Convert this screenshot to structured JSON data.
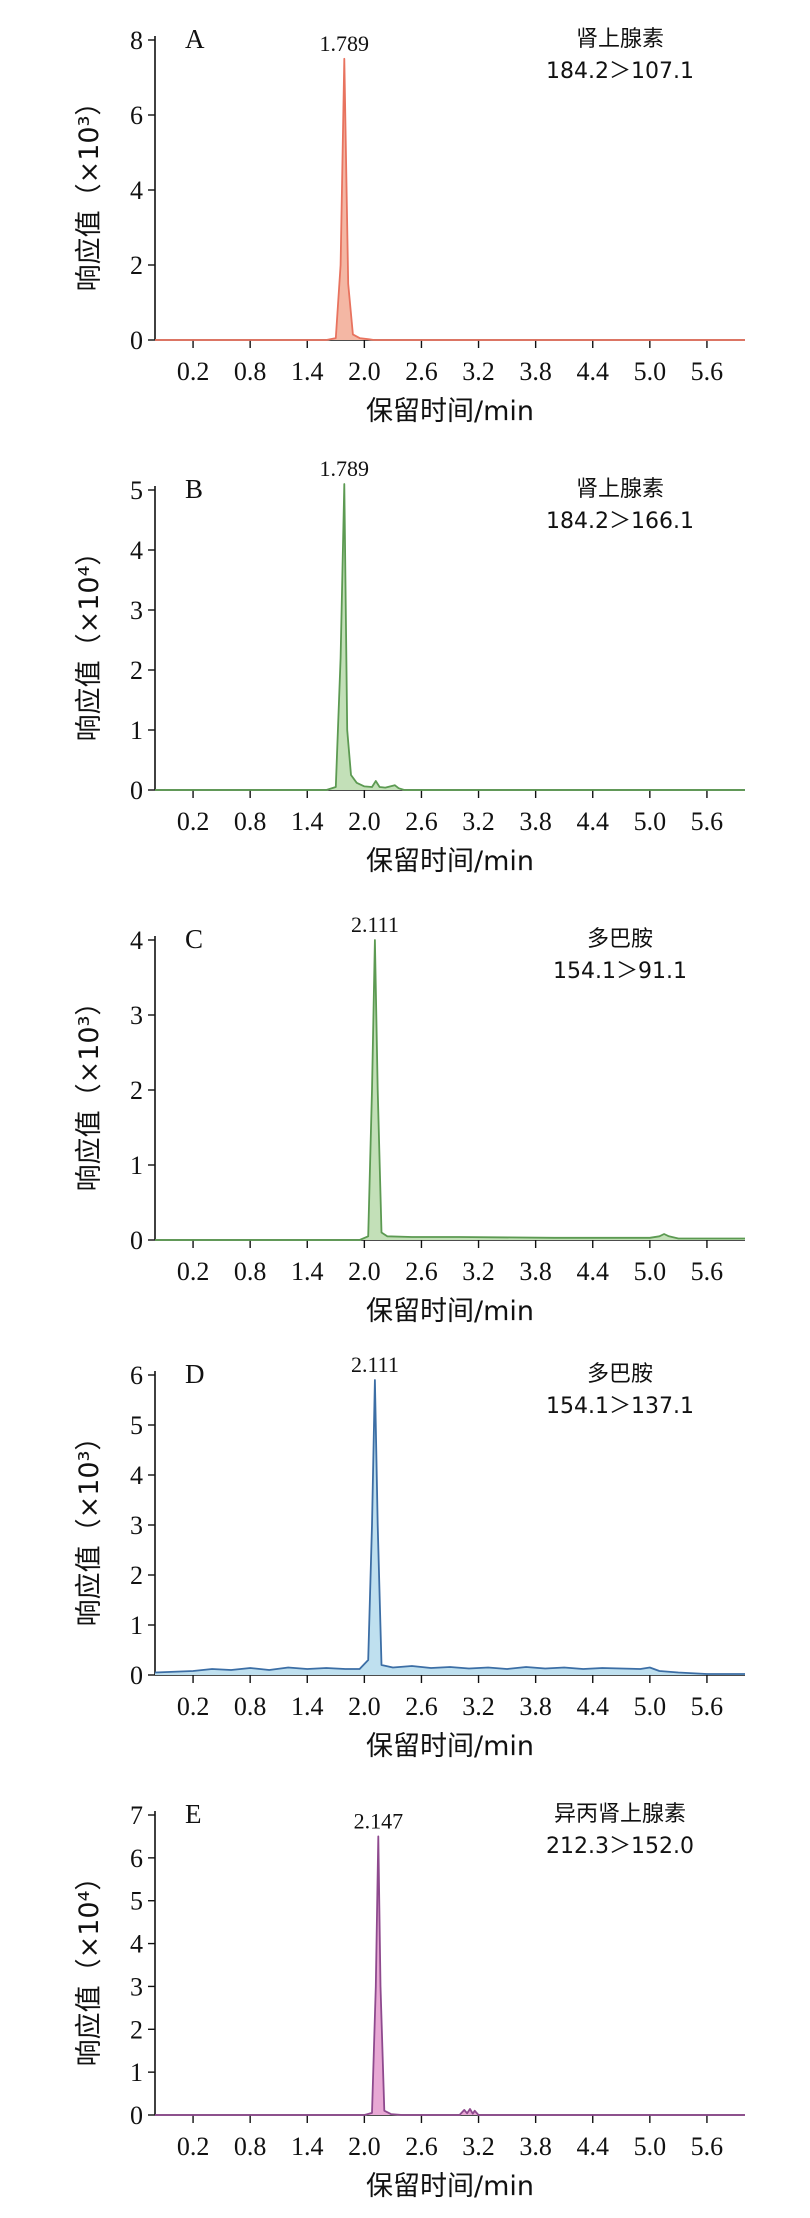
{
  "chart_data": [
    {
      "panel": "A",
      "type": "line",
      "xlabel": "保留时间/min",
      "ylabel": "响应值（×10³）",
      "xticks": [
        "0.2",
        "0.8",
        "1.4",
        "2.0",
        "2.6",
        "3.2",
        "3.8",
        "4.4",
        "5.0",
        "5.6"
      ],
      "xlim": [
        -0.2,
        6.0
      ],
      "ylim": [
        0,
        8
      ],
      "yticks": [
        "0",
        "2",
        "4",
        "6",
        "8"
      ],
      "color": "#e8735f",
      "fill": "#f4b7a4",
      "peak_label": "1.789",
      "annotation": [
        "肾上腺素",
        "184.2＞107.1"
      ],
      "series": [
        {
          "x": [
            -0.2,
            1.6,
            1.7,
            1.75,
            1.789,
            1.83,
            1.88,
            1.95,
            2.05,
            2.1,
            6.0
          ],
          "y": [
            0,
            0,
            0.05,
            2.0,
            7.5,
            1.5,
            0.15,
            0.05,
            0.02,
            0,
            0
          ]
        }
      ]
    },
    {
      "panel": "B",
      "type": "line",
      "xlabel": "保留时间/min",
      "ylabel": "响应值（×10⁴）",
      "xticks": [
        "0.2",
        "0.8",
        "1.4",
        "2.0",
        "2.6",
        "3.2",
        "3.8",
        "4.4",
        "5.0",
        "5.6"
      ],
      "xlim": [
        -0.2,
        6.0
      ],
      "ylim": [
        0,
        5
      ],
      "yticks": [
        "0",
        "1",
        "2",
        "3",
        "4",
        "5"
      ],
      "color": "#5c9a52",
      "fill": "#c3e0b8",
      "peak_label": "1.789",
      "annotation": [
        "肾上腺素",
        "184.2＞166.1"
      ],
      "series": [
        {
          "x": [
            -0.2,
            1.6,
            1.7,
            1.75,
            1.789,
            1.82,
            1.86,
            1.92,
            2.0,
            2.08,
            2.12,
            2.16,
            2.22,
            2.32,
            2.36,
            2.42,
            6.0
          ],
          "y": [
            0,
            0,
            0.05,
            2.2,
            5.1,
            1.0,
            0.25,
            0.12,
            0.06,
            0.05,
            0.15,
            0.05,
            0.04,
            0.08,
            0.03,
            0,
            0
          ]
        }
      ]
    },
    {
      "panel": "C",
      "type": "line",
      "xlabel": "保留时间/min",
      "ylabel": "响应值（×10³）",
      "xticks": [
        "0.2",
        "0.8",
        "1.4",
        "2.0",
        "2.6",
        "3.2",
        "3.8",
        "4.4",
        "5.0",
        "5.6"
      ],
      "xlim": [
        -0.2,
        6.0
      ],
      "ylim": [
        0,
        4
      ],
      "yticks": [
        "0",
        "1",
        "2",
        "3",
        "4"
      ],
      "color": "#5c9a52",
      "fill": "#c3e0b8",
      "peak_label": "2.111",
      "annotation": [
        "多巴胺",
        "154.1＞91.1"
      ],
      "series": [
        {
          "x": [
            -0.2,
            1.95,
            2.04,
            2.08,
            2.111,
            2.14,
            2.18,
            2.24,
            2.5,
            3.0,
            4.0,
            5.0,
            5.1,
            5.15,
            5.2,
            5.3,
            6.0
          ],
          "y": [
            0,
            0,
            0.05,
            2.0,
            4.0,
            2.0,
            0.1,
            0.05,
            0.04,
            0.04,
            0.03,
            0.03,
            0.05,
            0.08,
            0.05,
            0.02,
            0.02
          ]
        }
      ]
    },
    {
      "panel": "D",
      "type": "line",
      "xlabel": "保留时间/min",
      "ylabel": "响应值（×10³）",
      "xticks": [
        "0.2",
        "0.8",
        "1.4",
        "2.0",
        "2.6",
        "3.2",
        "3.8",
        "4.4",
        "5.0",
        "5.6"
      ],
      "xlim": [
        -0.2,
        6.0
      ],
      "ylim": [
        0,
        6
      ],
      "yticks": [
        "0",
        "1",
        "2",
        "3",
        "4",
        "5",
        "6"
      ],
      "color": "#3c6ea5",
      "fill": "#bfe0ef",
      "peak_label": "2.111",
      "annotation": [
        "多巴胺",
        "154.1＞137.1"
      ],
      "series": [
        {
          "x": [
            -0.2,
            0.2,
            0.4,
            0.6,
            0.8,
            1.0,
            1.2,
            1.4,
            1.6,
            1.8,
            1.95,
            2.04,
            2.08,
            2.111,
            2.14,
            2.18,
            2.3,
            2.5,
            2.7,
            2.9,
            3.1,
            3.3,
            3.5,
            3.7,
            3.9,
            4.1,
            4.3,
            4.5,
            4.7,
            4.9,
            5.0,
            5.1,
            5.3,
            5.6,
            6.0
          ],
          "y": [
            0.05,
            0.08,
            0.12,
            0.1,
            0.14,
            0.1,
            0.15,
            0.12,
            0.14,
            0.12,
            0.12,
            0.3,
            3.0,
            5.9,
            3.0,
            0.2,
            0.15,
            0.18,
            0.14,
            0.16,
            0.13,
            0.15,
            0.12,
            0.16,
            0.13,
            0.15,
            0.12,
            0.14,
            0.13,
            0.12,
            0.15,
            0.08,
            0.05,
            0.02,
            0.02
          ]
        }
      ]
    },
    {
      "panel": "E",
      "type": "line",
      "xlabel": "保留时间/min",
      "ylabel": "响应值（×10⁴）",
      "xticks": [
        "0.2",
        "0.8",
        "1.4",
        "2.0",
        "2.6",
        "3.2",
        "3.8",
        "4.4",
        "5.0",
        "5.6"
      ],
      "xlim": [
        -0.2,
        6.0
      ],
      "ylim": [
        0,
        7
      ],
      "yticks": [
        "0",
        "1",
        "2",
        "3",
        "4",
        "5",
        "6",
        "7"
      ],
      "color": "#8e4a8e",
      "fill": "#e8a8d4",
      "peak_label": "2.147",
      "annotation": [
        "异丙肾上腺素",
        "212.3＞152.0"
      ],
      "series": [
        {
          "x": [
            -0.2,
            2.0,
            2.08,
            2.12,
            2.147,
            2.17,
            2.21,
            2.28,
            2.4,
            3.0,
            3.05,
            3.08,
            3.11,
            3.14,
            3.16,
            3.2,
            3.3,
            6.0
          ],
          "y": [
            0,
            0,
            0.05,
            3.0,
            6.5,
            3.0,
            0.1,
            0.02,
            0,
            0,
            0.12,
            0.04,
            0.14,
            0.03,
            0.1,
            0,
            0,
            0
          ]
        }
      ]
    }
  ]
}
